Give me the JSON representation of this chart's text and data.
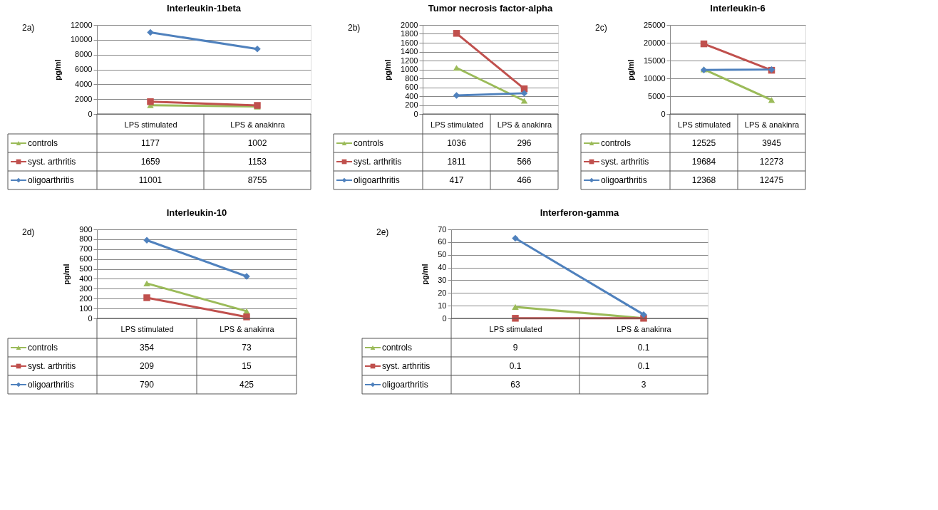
{
  "chart_data": [
    {
      "type": "line",
      "title": "Interleukin-1beta",
      "ylabel": "pg/ml",
      "annotations": [
        "2a)"
      ],
      "categories": [
        "LPS stimulated",
        "LPS & anakinra"
      ],
      "ylim": [
        0,
        12000
      ],
      "yticks": [
        0,
        2000,
        4000,
        6000,
        8000,
        10000,
        12000
      ],
      "grid": "y",
      "legend": "bottom",
      "data_labels": true,
      "series": [
        {
          "name": "controls",
          "color": "#9bbb59",
          "marker": "triangle",
          "values": [
            1177,
            1002
          ]
        },
        {
          "name": "syst. arthritis",
          "color": "#c0504d",
          "marker": "square",
          "values": [
            1659,
            1153
          ]
        },
        {
          "name": "oligoarthritis",
          "color": "#4f81bd",
          "marker": "diamond",
          "values": [
            11001,
            8755
          ]
        }
      ]
    },
    {
      "type": "line",
      "title": "Tumor necrosis factor-alpha",
      "ylabel": "pg/ml",
      "annotations": [
        "2b)"
      ],
      "categories": [
        "LPS stimulated",
        "LPS & anakinra"
      ],
      "ylim": [
        0,
        2000
      ],
      "yticks": [
        0,
        200,
        400,
        600,
        800,
        1000,
        1200,
        1400,
        1600,
        1800,
        2000
      ],
      "grid": "y",
      "legend": "bottom",
      "data_labels": true,
      "series": [
        {
          "name": "controls",
          "color": "#9bbb59",
          "marker": "triangle",
          "values": [
            1036,
            296
          ]
        },
        {
          "name": "syst. arthritis",
          "color": "#c0504d",
          "marker": "square",
          "values": [
            1811,
            566
          ]
        },
        {
          "name": "oligoarthritis",
          "color": "#4f81bd",
          "marker": "diamond",
          "values": [
            417,
            466
          ]
        }
      ]
    },
    {
      "type": "line",
      "title": "Interleukin-6",
      "ylabel": "pg/ml",
      "annotations": [
        "2c)"
      ],
      "categories": [
        "LPS stimulated",
        "LPS & anakinra"
      ],
      "ylim": [
        0,
        25000
      ],
      "yticks": [
        0,
        5000,
        10000,
        15000,
        20000,
        25000
      ],
      "grid": "y",
      "legend": "bottom",
      "data_labels": true,
      "series": [
        {
          "name": "controls",
          "color": "#9bbb59",
          "marker": "triangle",
          "values": [
            12525,
            3945
          ]
        },
        {
          "name": "syst. arthritis",
          "color": "#c0504d",
          "marker": "square",
          "values": [
            19684,
            12273
          ]
        },
        {
          "name": "oligoarthritis",
          "color": "#4f81bd",
          "marker": "diamond",
          "values": [
            12368,
            12475
          ]
        }
      ]
    },
    {
      "type": "line",
      "title": "Interleukin-10",
      "ylabel": "pg/ml",
      "annotations": [
        "2d)"
      ],
      "categories": [
        "LPS stimulated",
        "LPS & anakinra"
      ],
      "ylim": [
        0,
        900
      ],
      "yticks": [
        0,
        100,
        200,
        300,
        400,
        500,
        600,
        700,
        800,
        900
      ],
      "grid": "y",
      "legend": "bottom",
      "data_labels": true,
      "series": [
        {
          "name": "controls",
          "color": "#9bbb59",
          "marker": "triangle",
          "values": [
            354,
            73
          ]
        },
        {
          "name": "syst. arthritis",
          "color": "#c0504d",
          "marker": "square",
          "values": [
            209,
            15
          ]
        },
        {
          "name": "oligoarthritis",
          "color": "#4f81bd",
          "marker": "diamond",
          "values": [
            790,
            425
          ]
        }
      ]
    },
    {
      "type": "line",
      "title": "Interferon-gamma",
      "ylabel": "pg/ml",
      "annotations": [
        "2e)"
      ],
      "categories": [
        "LPS stimulated",
        "LPS & anakinra"
      ],
      "ylim": [
        0,
        70
      ],
      "yticks": [
        0,
        10,
        20,
        30,
        40,
        50,
        60,
        70
      ],
      "grid": "y",
      "legend": "bottom",
      "data_labels": true,
      "series": [
        {
          "name": "controls",
          "color": "#9bbb59",
          "marker": "triangle",
          "values": [
            9,
            0.1
          ]
        },
        {
          "name": "syst. arthritis",
          "color": "#c0504d",
          "marker": "square",
          "values": [
            0.1,
            0.1
          ]
        },
        {
          "name": "oligoarthritis",
          "color": "#4f81bd",
          "marker": "diamond",
          "values": [
            63,
            3
          ]
        }
      ]
    }
  ]
}
